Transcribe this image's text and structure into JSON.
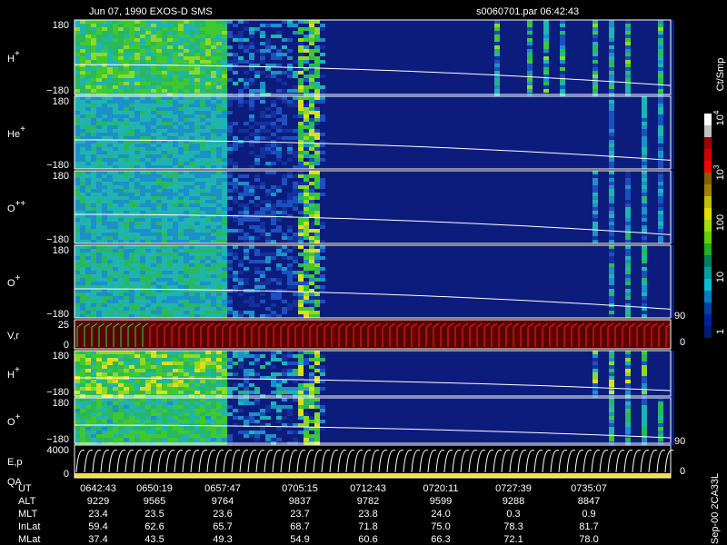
{
  "header": {
    "title": "Jun 07, 1990   EXOS-D SMS",
    "file": "s0060701.par  06:42:43"
  },
  "panels": [
    {
      "label": "H",
      "sup": "+",
      "top": "180",
      "bottom": "−180"
    },
    {
      "label": "He",
      "sup": "+",
      "top": "180",
      "bottom": "−180"
    },
    {
      "label": "O",
      "sup": "++",
      "top": "180",
      "bottom": "−180"
    },
    {
      "label": "O",
      "sup": "+",
      "top": "180",
      "bottom": "−180"
    },
    {
      "label": "V,r",
      "top": "25",
      "bottom": "0",
      "right_top": "90",
      "right_bottom": "0"
    },
    {
      "label": "H",
      "sup": "+",
      "top": "180",
      "bottom": "−180"
    },
    {
      "label": "O",
      "sup": "+",
      "top": "180",
      "bottom": "−180"
    },
    {
      "label": "E,p",
      "label2": "QA",
      "top": "4000",
      "bottom": "0",
      "right_top": "90",
      "right_bottom": "0"
    }
  ],
  "colorbar": {
    "unit": "Ct/Smp",
    "ticks": [
      {
        "base": "10",
        "exp": "4"
      },
      {
        "base": "10",
        "exp": "3"
      },
      {
        "base": "100"
      },
      {
        "base": "10"
      },
      {
        "base": "1"
      }
    ]
  },
  "table": {
    "rows": [
      {
        "label": "UT",
        "values": [
          "0642:43",
          "0650:19",
          "0657:47",
          "0705:15",
          "0712:43",
          "0720:11",
          "0727:39",
          "0735:07"
        ]
      },
      {
        "label": "ALT",
        "values": [
          "9229",
          "9565",
          "9764",
          "9837",
          "9782",
          "9599",
          "9288",
          "8847"
        ]
      },
      {
        "label": "MLT",
        "values": [
          "23.4",
          "23.5",
          "23.6",
          "23.7",
          "23.8",
          "24.0",
          "0.3",
          "0.9"
        ]
      },
      {
        "label": "InLat",
        "values": [
          "59.4",
          "62.6",
          "65.7",
          "68.7",
          "71.8",
          "75.0",
          "78.3",
          "81.7"
        ]
      },
      {
        "label": "MLat",
        "values": [
          "37.4",
          "43.5",
          "49.3",
          "54.9",
          "60.6",
          "66.3",
          "72.1",
          "78.0"
        ]
      }
    ]
  },
  "footer": "Sep-00 2CA33L"
}
